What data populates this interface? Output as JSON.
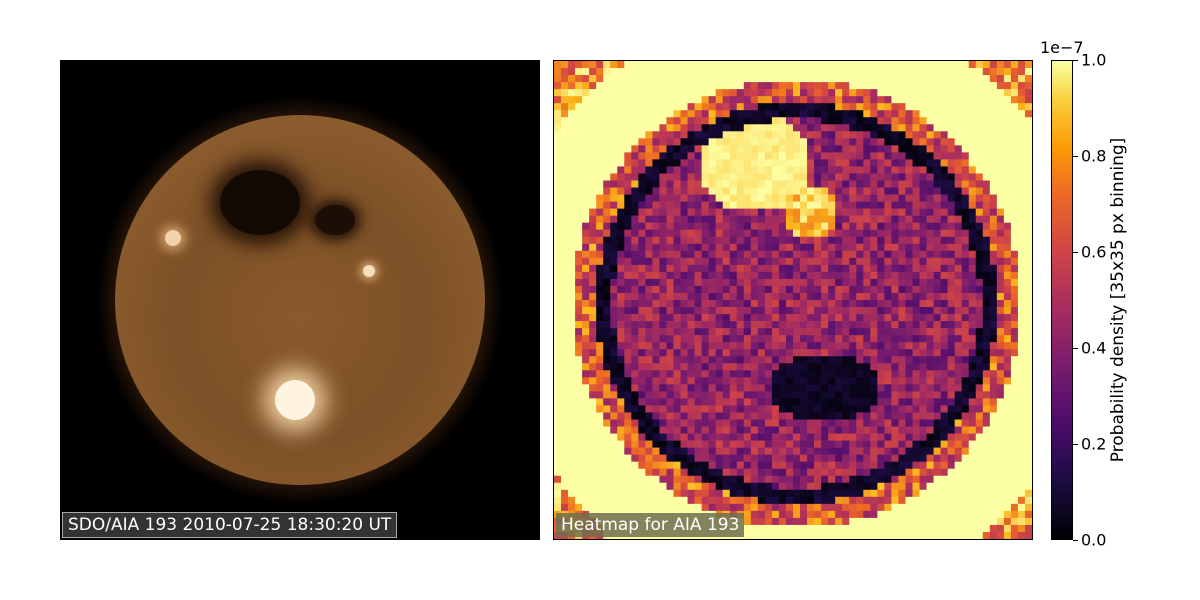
{
  "panels": {
    "left": {
      "caption": "SDO/AIA 193 2010-07-25 18:30:20 UT"
    },
    "right": {
      "caption": "Heatmap for AIA 193"
    }
  },
  "colorbar": {
    "exponent_label": "1e−7",
    "label": "Probability density [35x35 px binning]",
    "ticks": [
      "0.0",
      "0.2",
      "0.4",
      "0.6",
      "0.8",
      "1.0"
    ],
    "tick_values": [
      0.0,
      0.2,
      0.4,
      0.6,
      0.8,
      1.0
    ],
    "colormap": "inferno"
  },
  "chart_data": [
    {
      "type": "image",
      "title": "SDO/AIA 193 2010-07-25 18:30:20 UT"
    },
    {
      "type": "heatmap",
      "title": "Heatmap for AIA 193",
      "colorbar_range": [
        0.0,
        1.0
      ],
      "colorbar_scale": "1e-7",
      "colorbar_label": "Probability density [35x35 px binning]"
    }
  ]
}
